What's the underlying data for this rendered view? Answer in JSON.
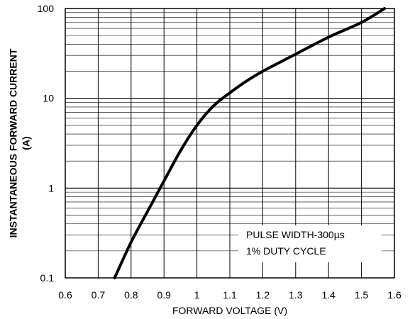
{
  "chart_data": {
    "type": "line",
    "xlabel": "FORWARD VOLTAGE (V)",
    "ylabel_line1": "INSTANTANEOUS FORWARD CURRENT",
    "ylabel_line2": "(A)",
    "xlim": [
      0.6,
      1.6
    ],
    "ylim": [
      0.1,
      100
    ],
    "yscale": "log",
    "grid": true,
    "x_ticks": [
      "0.6",
      "0.7",
      "0.8",
      "0.9",
      "1",
      "1.1",
      "1.2",
      "1.3",
      "1.4",
      "1.5",
      "1.6"
    ],
    "y_ticks": [
      "0.1",
      "1",
      "10",
      "100"
    ],
    "annotations": [
      "PULSE WIDTH-300µs",
      "1% DUTY CYCLE"
    ],
    "series": [
      {
        "x": [
          0.75,
          0.8,
          0.85,
          0.9,
          0.95,
          1.0,
          1.05,
          1.1,
          1.15,
          1.2,
          1.3,
          1.4,
          1.5,
          1.57
        ],
        "y": [
          0.1,
          0.25,
          0.55,
          1.2,
          2.6,
          5,
          8.2,
          11.5,
          15.5,
          20,
          31,
          48,
          70,
          100
        ]
      }
    ]
  }
}
